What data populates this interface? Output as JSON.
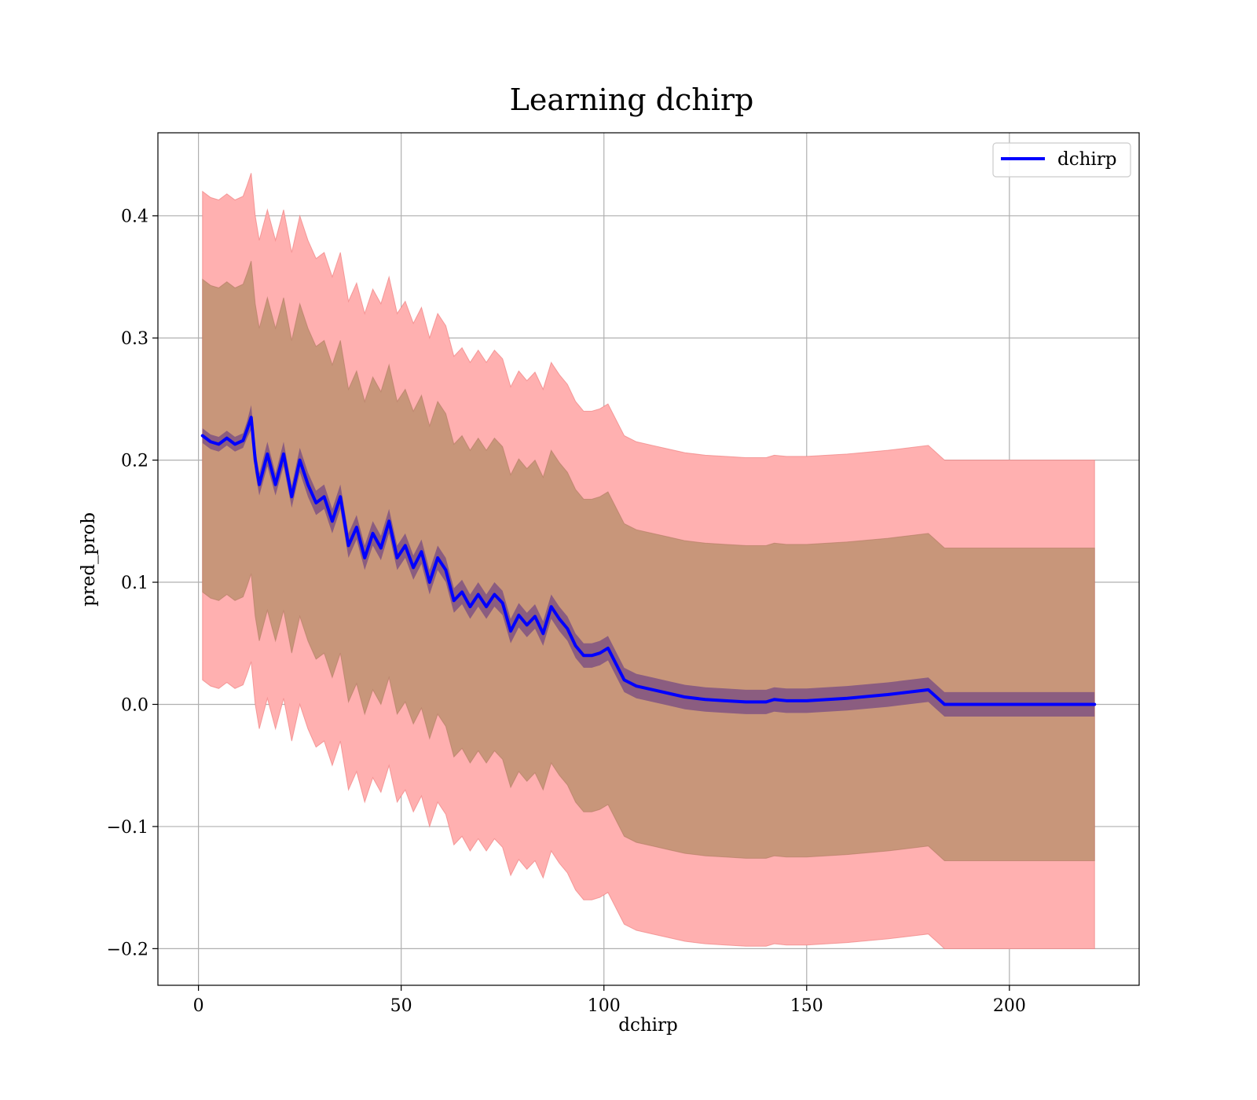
{
  "chart_data": {
    "type": "line",
    "title": "Learning dchirp",
    "xlabel": "dchirp",
    "ylabel": "pred_prob",
    "xlim": [
      -10,
      232
    ],
    "ylim": [
      -0.23,
      0.468
    ],
    "xticks": [
      0,
      50,
      100,
      150,
      200
    ],
    "xtick_labels": [
      "0",
      "50",
      "100",
      "150",
      "200"
    ],
    "yticks": [
      -0.2,
      -0.1,
      0.0,
      0.1,
      0.2,
      0.3,
      0.4
    ],
    "ytick_labels": [
      "−0.2",
      "−0.1",
      "0.0",
      "0.1",
      "0.2",
      "0.3",
      "0.4"
    ],
    "grid": true,
    "legend_position": "top-right",
    "colors": {
      "line": "#0000ff",
      "outer_band": "#ffb0b0",
      "middle_band": "#c8967a",
      "inner_band": "#8b5d80"
    },
    "series": [
      {
        "name": "dchirp",
        "x": [
          1,
          3,
          5,
          7,
          9,
          11,
          12,
          13,
          14,
          15,
          17,
          19,
          21,
          23,
          25,
          27,
          29,
          31,
          33,
          35,
          37,
          39,
          41,
          43,
          45,
          47,
          49,
          51,
          53,
          55,
          57,
          59,
          61,
          63,
          65,
          67,
          69,
          71,
          73,
          75,
          77,
          79,
          81,
          83,
          85,
          87,
          89,
          91,
          93,
          95,
          97,
          99,
          101,
          103,
          105,
          108,
          112,
          116,
          120,
          125,
          130,
          135,
          140,
          142,
          145,
          150,
          160,
          170,
          180,
          182,
          184,
          190,
          200,
          210,
          221
        ],
        "y": [
          0.22,
          0.215,
          0.213,
          0.218,
          0.213,
          0.216,
          0.225,
          0.235,
          0.2,
          0.18,
          0.205,
          0.18,
          0.205,
          0.17,
          0.2,
          0.18,
          0.165,
          0.17,
          0.15,
          0.17,
          0.13,
          0.145,
          0.12,
          0.14,
          0.128,
          0.15,
          0.12,
          0.13,
          0.112,
          0.125,
          0.1,
          0.12,
          0.11,
          0.085,
          0.092,
          0.08,
          0.09,
          0.08,
          0.09,
          0.083,
          0.06,
          0.073,
          0.065,
          0.072,
          0.058,
          0.08,
          0.07,
          0.062,
          0.048,
          0.04,
          0.04,
          0.042,
          0.046,
          0.033,
          0.02,
          0.015,
          0.012,
          0.009,
          0.006,
          0.004,
          0.003,
          0.002,
          0.002,
          0.004,
          0.003,
          0.003,
          0.005,
          0.008,
          0.012,
          0.006,
          0.0,
          0.0,
          0.0,
          0.0,
          0.0
        ],
        "inner_half_width": [
          0.006,
          0.006,
          0.006,
          0.006,
          0.006,
          0.006,
          0.007,
          0.01,
          0.01,
          0.009,
          0.01,
          0.009,
          0.01,
          0.009,
          0.01,
          0.01,
          0.01,
          0.01,
          0.01,
          0.01,
          0.01,
          0.01,
          0.01,
          0.01,
          0.01,
          0.01,
          0.01,
          0.01,
          0.01,
          0.01,
          0.01,
          0.01,
          0.01,
          0.01,
          0.01,
          0.01,
          0.01,
          0.01,
          0.01,
          0.01,
          0.01,
          0.01,
          0.01,
          0.01,
          0.01,
          0.01,
          0.01,
          0.01,
          0.01,
          0.01,
          0.01,
          0.01,
          0.01,
          0.01,
          0.01,
          0.01,
          0.01,
          0.01,
          0.01,
          0.01,
          0.01,
          0.01,
          0.01,
          0.01,
          0.01,
          0.01,
          0.01,
          0.01,
          0.01,
          0.01,
          0.01,
          0.01,
          0.01,
          0.01,
          0.01
        ],
        "middle_half_width": [
          0.128,
          0.128,
          0.128,
          0.128,
          0.128,
          0.128,
          0.128,
          0.128,
          0.128,
          0.128,
          0.128,
          0.128,
          0.128,
          0.128,
          0.128,
          0.128,
          0.128,
          0.128,
          0.128,
          0.128,
          0.128,
          0.128,
          0.128,
          0.128,
          0.128,
          0.128,
          0.128,
          0.128,
          0.128,
          0.128,
          0.128,
          0.128,
          0.128,
          0.128,
          0.128,
          0.128,
          0.128,
          0.128,
          0.128,
          0.128,
          0.128,
          0.128,
          0.128,
          0.128,
          0.128,
          0.128,
          0.128,
          0.128,
          0.128,
          0.128,
          0.128,
          0.128,
          0.128,
          0.128,
          0.128,
          0.128,
          0.128,
          0.128,
          0.128,
          0.128,
          0.128,
          0.128,
          0.128,
          0.128,
          0.128,
          0.128,
          0.128,
          0.128,
          0.128,
          0.128,
          0.128,
          0.128,
          0.128,
          0.128,
          0.128
        ],
        "outer_half_width": [
          0.2,
          0.2,
          0.2,
          0.2,
          0.2,
          0.2,
          0.2,
          0.2,
          0.2,
          0.2,
          0.2,
          0.2,
          0.2,
          0.2,
          0.2,
          0.2,
          0.2,
          0.2,
          0.2,
          0.2,
          0.2,
          0.2,
          0.2,
          0.2,
          0.2,
          0.2,
          0.2,
          0.2,
          0.2,
          0.2,
          0.2,
          0.2,
          0.2,
          0.2,
          0.2,
          0.2,
          0.2,
          0.2,
          0.2,
          0.2,
          0.2,
          0.2,
          0.2,
          0.2,
          0.2,
          0.2,
          0.2,
          0.2,
          0.2,
          0.2,
          0.2,
          0.2,
          0.2,
          0.2,
          0.2,
          0.2,
          0.2,
          0.2,
          0.2,
          0.2,
          0.2,
          0.2,
          0.2,
          0.2,
          0.2,
          0.2,
          0.2,
          0.2,
          0.2,
          0.2,
          0.2,
          0.2,
          0.2,
          0.2,
          0.2
        ]
      }
    ]
  }
}
